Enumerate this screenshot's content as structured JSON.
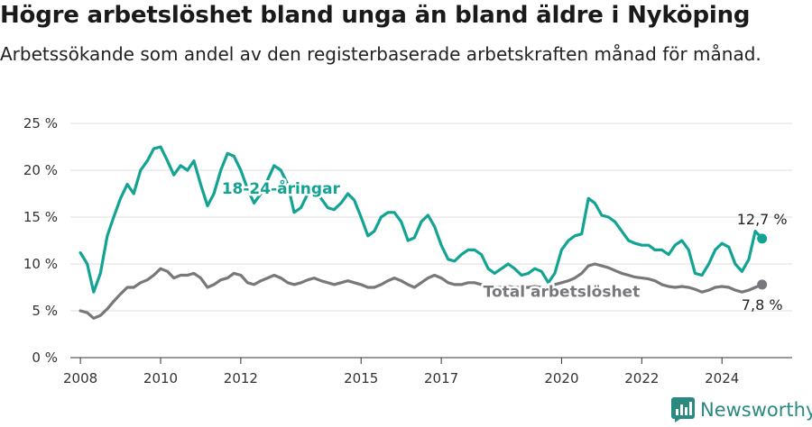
{
  "title": "Högre arbetslöshet bland unga än bland äldre i Nyköping",
  "subtitle": "Arbetssökande som andel av den registerbaserade arbetskraften månad för månad.",
  "brand": {
    "name": "Newsworthy",
    "logo_icon": "newsworthy-logo-icon"
  },
  "colors": {
    "youth": "#13a393",
    "total": "#77787b",
    "grid": "#dddddd",
    "axis": "#333333"
  },
  "chart_data": {
    "type": "line",
    "title": "Högre arbetslöshet bland unga än bland äldre i Nyköping",
    "subtitle": "Arbetssökande som andel av den registerbaserade arbetskraften månad för månad.",
    "xlabel": "",
    "ylabel": "",
    "ylim": [
      0,
      25
    ],
    "xlim": [
      2007.75,
      2025.75
    ],
    "grid": true,
    "y_ticks": [
      0,
      5,
      10,
      15,
      20,
      25
    ],
    "y_tick_labels": [
      "0 %",
      "5 %",
      "10 %",
      "15 %",
      "20 %",
      "25 %"
    ],
    "x_ticks": [
      2008,
      2010,
      2012,
      2015,
      2017,
      2020,
      2022,
      2024
    ],
    "x_tick_labels": [
      "2008",
      "2010",
      "2012",
      "2015",
      "2017",
      "2020",
      "2022",
      "2024"
    ],
    "series": [
      {
        "name": "18-24-åringar",
        "label_x": 2013.0,
        "label_y": 17.5,
        "end_label": "12,7 %",
        "points": [
          [
            2008.0,
            11.2
          ],
          [
            2008.17,
            10.0
          ],
          [
            2008.33,
            7.0
          ],
          [
            2008.5,
            9.0
          ],
          [
            2008.67,
            13.0
          ],
          [
            2008.83,
            15.0
          ],
          [
            2009.0,
            17.0
          ],
          [
            2009.17,
            18.5
          ],
          [
            2009.33,
            17.5
          ],
          [
            2009.5,
            20.0
          ],
          [
            2009.67,
            21.0
          ],
          [
            2009.83,
            22.3
          ],
          [
            2010.0,
            22.5
          ],
          [
            2010.17,
            21.0
          ],
          [
            2010.33,
            19.5
          ],
          [
            2010.5,
            20.5
          ],
          [
            2010.67,
            20.0
          ],
          [
            2010.83,
            21.0
          ],
          [
            2011.0,
            18.5
          ],
          [
            2011.17,
            16.2
          ],
          [
            2011.33,
            17.5
          ],
          [
            2011.5,
            20.0
          ],
          [
            2011.67,
            21.8
          ],
          [
            2011.83,
            21.5
          ],
          [
            2012.0,
            20.0
          ],
          [
            2012.17,
            18.0
          ],
          [
            2012.33,
            16.5
          ],
          [
            2012.5,
            17.5
          ],
          [
            2012.67,
            19.0
          ],
          [
            2012.83,
            20.5
          ],
          [
            2013.0,
            20.0
          ],
          [
            2013.17,
            18.5
          ],
          [
            2013.33,
            15.5
          ],
          [
            2013.5,
            16.0
          ],
          [
            2013.67,
            17.5
          ],
          [
            2013.83,
            17.5
          ],
          [
            2014.0,
            17.0
          ],
          [
            2014.17,
            16.0
          ],
          [
            2014.33,
            15.8
          ],
          [
            2014.5,
            16.5
          ],
          [
            2014.67,
            17.5
          ],
          [
            2014.83,
            16.8
          ],
          [
            2015.0,
            15.0
          ],
          [
            2015.17,
            13.0
          ],
          [
            2015.33,
            13.5
          ],
          [
            2015.5,
            15.0
          ],
          [
            2015.67,
            15.5
          ],
          [
            2015.83,
            15.5
          ],
          [
            2016.0,
            14.5
          ],
          [
            2016.17,
            12.5
          ],
          [
            2016.33,
            12.8
          ],
          [
            2016.5,
            14.5
          ],
          [
            2016.67,
            15.2
          ],
          [
            2016.83,
            14.0
          ],
          [
            2017.0,
            12.0
          ],
          [
            2017.17,
            10.5
          ],
          [
            2017.33,
            10.3
          ],
          [
            2017.5,
            11.0
          ],
          [
            2017.67,
            11.5
          ],
          [
            2017.83,
            11.5
          ],
          [
            2018.0,
            11.0
          ],
          [
            2018.17,
            9.5
          ],
          [
            2018.33,
            9.0
          ],
          [
            2018.5,
            9.5
          ],
          [
            2018.67,
            10.0
          ],
          [
            2018.83,
            9.5
          ],
          [
            2019.0,
            8.8
          ],
          [
            2019.17,
            9.0
          ],
          [
            2019.33,
            9.5
          ],
          [
            2019.5,
            9.2
          ],
          [
            2019.67,
            8.0
          ],
          [
            2019.83,
            9.0
          ],
          [
            2020.0,
            11.5
          ],
          [
            2020.17,
            12.5
          ],
          [
            2020.33,
            13.0
          ],
          [
            2020.5,
            13.2
          ],
          [
            2020.67,
            17.0
          ],
          [
            2020.83,
            16.5
          ],
          [
            2021.0,
            15.2
          ],
          [
            2021.17,
            15.0
          ],
          [
            2021.33,
            14.5
          ],
          [
            2021.5,
            13.5
          ],
          [
            2021.67,
            12.5
          ],
          [
            2021.83,
            12.2
          ],
          [
            2022.0,
            12.0
          ],
          [
            2022.17,
            12.0
          ],
          [
            2022.33,
            11.5
          ],
          [
            2022.5,
            11.5
          ],
          [
            2022.67,
            11.0
          ],
          [
            2022.83,
            12.0
          ],
          [
            2023.0,
            12.5
          ],
          [
            2023.17,
            11.5
          ],
          [
            2023.33,
            9.0
          ],
          [
            2023.5,
            8.8
          ],
          [
            2023.67,
            10.0
          ],
          [
            2023.83,
            11.5
          ],
          [
            2024.0,
            12.2
          ],
          [
            2024.17,
            11.8
          ],
          [
            2024.33,
            10.0
          ],
          [
            2024.5,
            9.2
          ],
          [
            2024.67,
            10.5
          ],
          [
            2024.83,
            13.5
          ],
          [
            2025.0,
            12.7
          ]
        ]
      },
      {
        "name": "Total arbetslöshet",
        "label_x": 2020.0,
        "label_y": 6.5,
        "end_label": "7,8 %",
        "points": [
          [
            2008.0,
            5.0
          ],
          [
            2008.17,
            4.8
          ],
          [
            2008.33,
            4.2
          ],
          [
            2008.5,
            4.5
          ],
          [
            2008.67,
            5.2
          ],
          [
            2008.83,
            6.0
          ],
          [
            2009.0,
            6.8
          ],
          [
            2009.17,
            7.5
          ],
          [
            2009.33,
            7.5
          ],
          [
            2009.5,
            8.0
          ],
          [
            2009.67,
            8.3
          ],
          [
            2009.83,
            8.8
          ],
          [
            2010.0,
            9.5
          ],
          [
            2010.17,
            9.2
          ],
          [
            2010.33,
            8.5
          ],
          [
            2010.5,
            8.8
          ],
          [
            2010.67,
            8.8
          ],
          [
            2010.83,
            9.0
          ],
          [
            2011.0,
            8.5
          ],
          [
            2011.17,
            7.5
          ],
          [
            2011.33,
            7.8
          ],
          [
            2011.5,
            8.3
          ],
          [
            2011.67,
            8.5
          ],
          [
            2011.83,
            9.0
          ],
          [
            2012.0,
            8.8
          ],
          [
            2012.17,
            8.0
          ],
          [
            2012.33,
            7.8
          ],
          [
            2012.5,
            8.2
          ],
          [
            2012.67,
            8.5
          ],
          [
            2012.83,
            8.8
          ],
          [
            2013.0,
            8.5
          ],
          [
            2013.17,
            8.0
          ],
          [
            2013.33,
            7.8
          ],
          [
            2013.5,
            8.0
          ],
          [
            2013.67,
            8.3
          ],
          [
            2013.83,
            8.5
          ],
          [
            2014.0,
            8.2
          ],
          [
            2014.17,
            8.0
          ],
          [
            2014.33,
            7.8
          ],
          [
            2014.5,
            8.0
          ],
          [
            2014.67,
            8.2
          ],
          [
            2014.83,
            8.0
          ],
          [
            2015.0,
            7.8
          ],
          [
            2015.17,
            7.5
          ],
          [
            2015.33,
            7.5
          ],
          [
            2015.5,
            7.8
          ],
          [
            2015.67,
            8.2
          ],
          [
            2015.83,
            8.5
          ],
          [
            2016.0,
            8.2
          ],
          [
            2016.17,
            7.8
          ],
          [
            2016.33,
            7.5
          ],
          [
            2016.5,
            8.0
          ],
          [
            2016.67,
            8.5
          ],
          [
            2016.83,
            8.8
          ],
          [
            2017.0,
            8.5
          ],
          [
            2017.17,
            8.0
          ],
          [
            2017.33,
            7.8
          ],
          [
            2017.5,
            7.8
          ],
          [
            2017.67,
            8.0
          ],
          [
            2017.83,
            8.0
          ],
          [
            2018.0,
            7.8
          ],
          [
            2018.17,
            7.5
          ],
          [
            2018.33,
            7.5
          ],
          [
            2018.5,
            7.5
          ],
          [
            2018.67,
            7.6
          ],
          [
            2018.83,
            7.5
          ],
          [
            2019.0,
            7.5
          ],
          [
            2019.17,
            7.5
          ],
          [
            2019.33,
            7.6
          ],
          [
            2019.5,
            7.5
          ],
          [
            2019.67,
            7.5
          ],
          [
            2019.83,
            7.8
          ],
          [
            2020.0,
            8.0
          ],
          [
            2020.17,
            8.2
          ],
          [
            2020.33,
            8.5
          ],
          [
            2020.5,
            9.0
          ],
          [
            2020.67,
            9.8
          ],
          [
            2020.83,
            10.0
          ],
          [
            2021.0,
            9.8
          ],
          [
            2021.17,
            9.6
          ],
          [
            2021.33,
            9.3
          ],
          [
            2021.5,
            9.0
          ],
          [
            2021.67,
            8.8
          ],
          [
            2021.83,
            8.6
          ],
          [
            2022.0,
            8.5
          ],
          [
            2022.17,
            8.4
          ],
          [
            2022.33,
            8.2
          ],
          [
            2022.5,
            7.8
          ],
          [
            2022.67,
            7.6
          ],
          [
            2022.83,
            7.5
          ],
          [
            2023.0,
            7.6
          ],
          [
            2023.17,
            7.5
          ],
          [
            2023.33,
            7.3
          ],
          [
            2023.5,
            7.0
          ],
          [
            2023.67,
            7.2
          ],
          [
            2023.83,
            7.5
          ],
          [
            2024.0,
            7.6
          ],
          [
            2024.17,
            7.5
          ],
          [
            2024.33,
            7.2
          ],
          [
            2024.5,
            7.0
          ],
          [
            2024.67,
            7.2
          ],
          [
            2024.83,
            7.5
          ],
          [
            2025.0,
            7.8
          ]
        ]
      }
    ]
  }
}
